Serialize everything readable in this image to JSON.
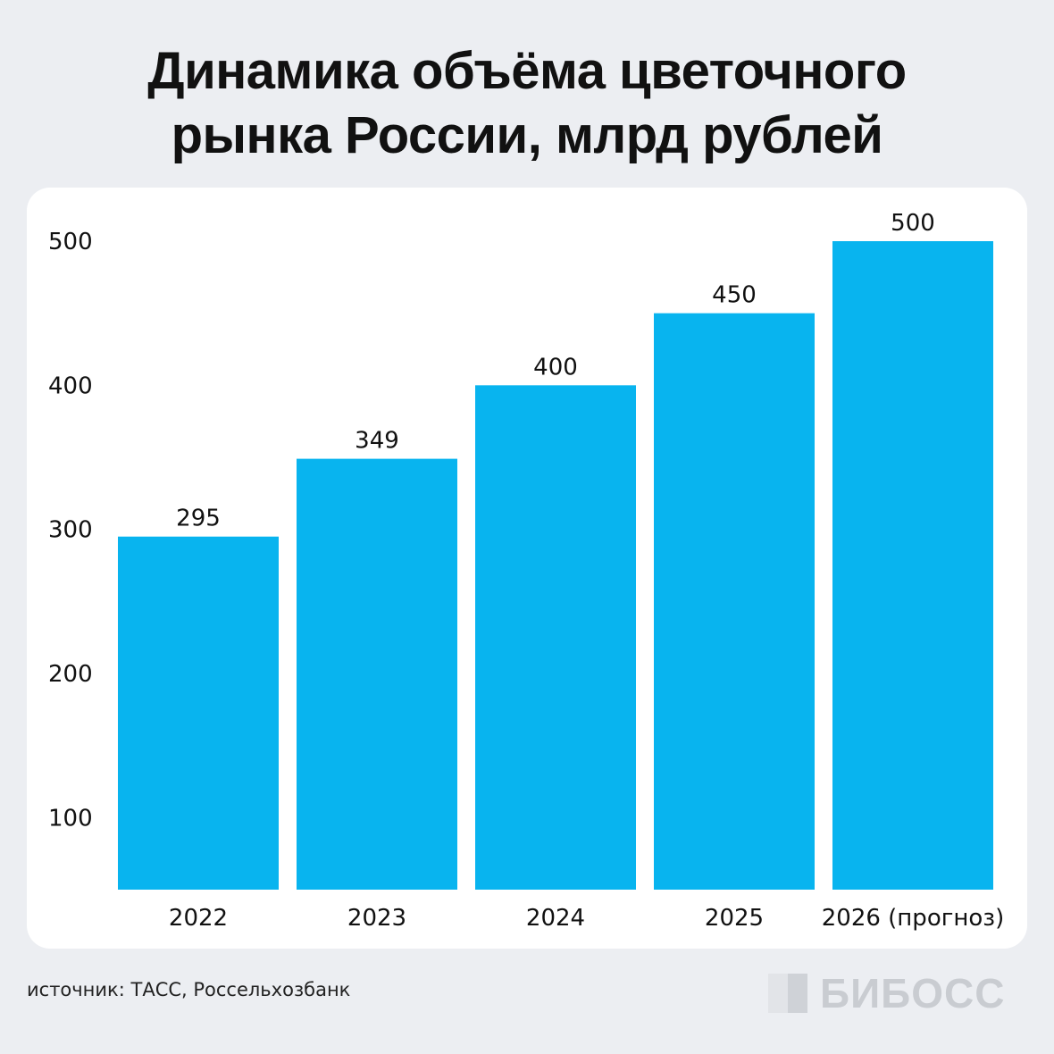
{
  "title": {
    "line1": "Динамика объёма цветочного",
    "line2": "рынка России, млрд рублей"
  },
  "source": "источник: ТАСС, Россельхозбанк",
  "brand": "БИБОСС",
  "colors": {
    "bar": "#08b4ef",
    "background": "#eceef2",
    "card": "#ffffff",
    "text": "#111111"
  },
  "chart_data": {
    "type": "bar",
    "categories": [
      "2022",
      "2023",
      "2024",
      "2025",
      "2026 (прогноз)"
    ],
    "values": [
      295,
      349,
      400,
      450,
      500
    ],
    "data_labels": [
      "295",
      "349",
      "400",
      "450",
      "500"
    ],
    "yticks": [
      100,
      200,
      300,
      400,
      500
    ],
    "ylim": [
      50,
      500
    ],
    "grid": false,
    "legend": "none"
  }
}
